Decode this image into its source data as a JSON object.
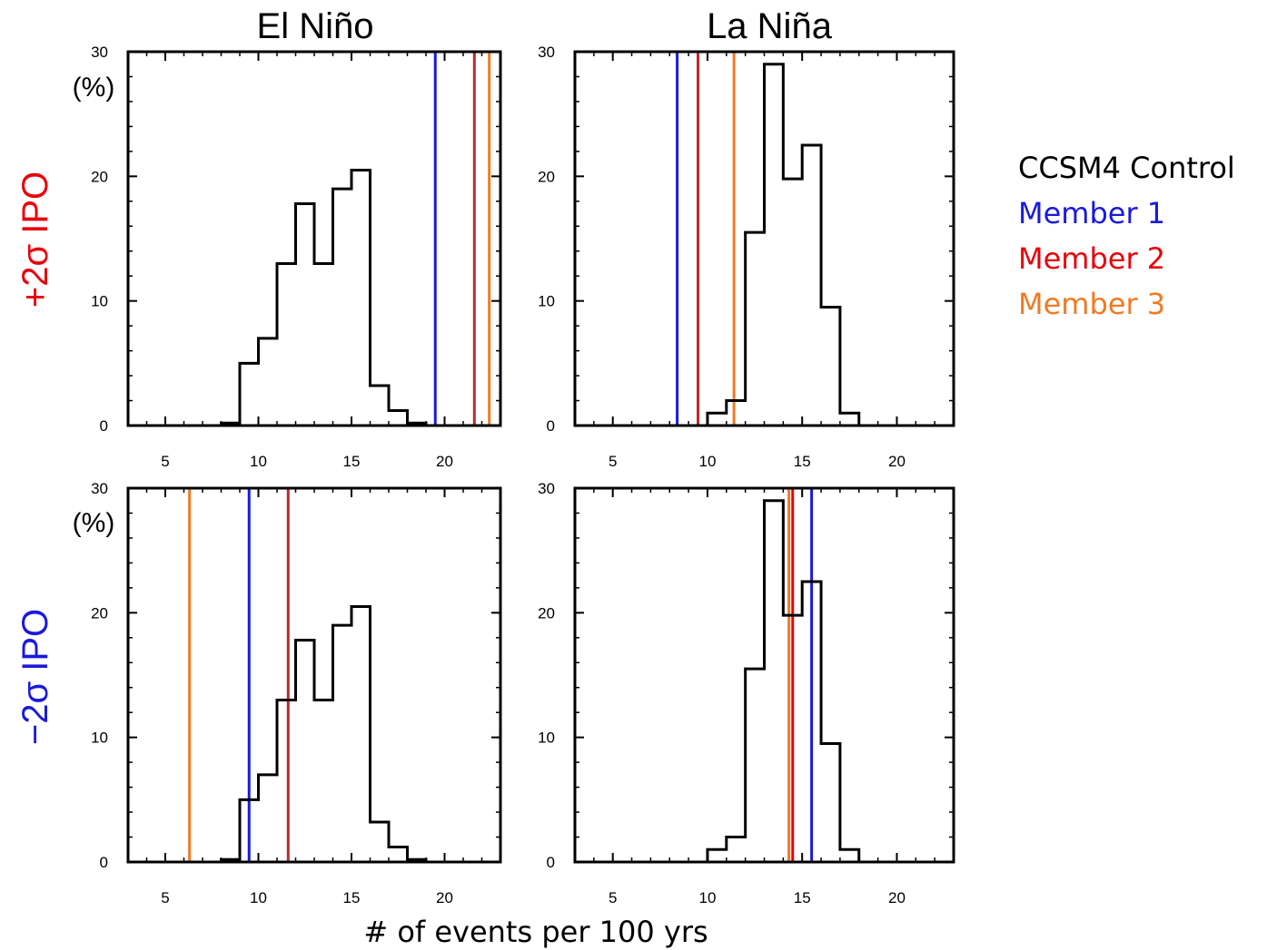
{
  "figure": {
    "col_titles": [
      "El Niño",
      "La Niña"
    ],
    "row_labels": [
      {
        "text": "+2σ IPO",
        "color": "#e8000b"
      },
      {
        "text": "−2σ IPO",
        "color": "#1a1adc"
      }
    ],
    "x_label": "# of events per 100 yrs",
    "y_unit": "(%)",
    "legend": [
      {
        "text": "CCSM4 Control",
        "color": "#000000"
      },
      {
        "text": "Member 1",
        "color": "#1a1adc"
      },
      {
        "text": "Member 2",
        "color": "#e8000b"
      },
      {
        "text": "Member 3",
        "color": "#f07a24"
      }
    ]
  },
  "chart_data": [
    {
      "type": "bar",
      "panel": "El Niño, +2σ IPO",
      "title": "El Niño",
      "row_label": "+2σ IPO",
      "ylabel": "(%)",
      "xlim": [
        3,
        23
      ],
      "ylim": [
        0,
        30
      ],
      "xticks": [
        5,
        10,
        15,
        20
      ],
      "yticks": [
        0,
        10,
        20,
        30
      ],
      "bin_edges": [
        3,
        4,
        5,
        6,
        7,
        8,
        9,
        10,
        11,
        12,
        13,
        14,
        15,
        16,
        17,
        18,
        19,
        20,
        21,
        22,
        23
      ],
      "values": [
        0,
        0,
        0,
        0,
        0,
        0.2,
        5,
        7,
        13,
        17.8,
        13,
        19,
        20.5,
        3.2,
        1.2,
        0.2,
        0,
        0,
        0,
        0
      ],
      "series_name": "CCSM4 Control",
      "member_lines": [
        {
          "name": "Member 1",
          "x": 19.5,
          "color": "#1a1adc"
        },
        {
          "name": "Member 2",
          "x": 21.6,
          "color": "#c0282b"
        },
        {
          "name": "Member 3",
          "x": 22.4,
          "color": "#f07a24"
        }
      ]
    },
    {
      "type": "bar",
      "panel": "La Niña, +2σ IPO",
      "title": "La Niña",
      "row_label": "+2σ IPO",
      "xlim": [
        3,
        23
      ],
      "ylim": [
        0,
        30
      ],
      "xticks": [
        5,
        10,
        15,
        20
      ],
      "yticks": [
        0,
        10,
        20,
        30
      ],
      "bin_edges": [
        3,
        4,
        5,
        6,
        7,
        8,
        9,
        10,
        11,
        12,
        13,
        14,
        15,
        16,
        17,
        18,
        19,
        20,
        21,
        22,
        23
      ],
      "values": [
        0,
        0,
        0,
        0,
        0,
        0,
        0,
        1,
        2,
        15.5,
        29,
        19.8,
        22.5,
        9.5,
        1,
        0,
        0,
        0,
        0,
        0
      ],
      "series_name": "CCSM4 Control",
      "member_lines": [
        {
          "name": "Member 1",
          "x": 8.4,
          "color": "#1a1adc"
        },
        {
          "name": "Member 2",
          "x": 9.5,
          "color": "#c0282b"
        },
        {
          "name": "Member 3",
          "x": 11.4,
          "color": "#f07a24"
        }
      ]
    },
    {
      "type": "bar",
      "panel": "El Niño, −2σ IPO",
      "title": "El Niño",
      "row_label": "−2σ IPO",
      "ylabel": "(%)",
      "xlim": [
        3,
        23
      ],
      "ylim": [
        0,
        30
      ],
      "xticks": [
        5,
        10,
        15,
        20
      ],
      "yticks": [
        0,
        10,
        20,
        30
      ],
      "bin_edges": [
        3,
        4,
        5,
        6,
        7,
        8,
        9,
        10,
        11,
        12,
        13,
        14,
        15,
        16,
        17,
        18,
        19,
        20,
        21,
        22,
        23
      ],
      "values": [
        0,
        0,
        0,
        0,
        0,
        0.2,
        5,
        7,
        13,
        17.8,
        13,
        19,
        20.5,
        3.2,
        1.2,
        0.2,
        0,
        0,
        0,
        0
      ],
      "series_name": "CCSM4 Control",
      "member_lines": [
        {
          "name": "Member 1",
          "x": 9.5,
          "color": "#1a1adc"
        },
        {
          "name": "Member 2",
          "x": 11.6,
          "color": "#c0282b"
        },
        {
          "name": "Member 3",
          "x": 6.3,
          "color": "#f07a24"
        }
      ]
    },
    {
      "type": "bar",
      "panel": "La Niña, −2σ IPO",
      "title": "La Niña",
      "row_label": "−2σ IPO",
      "xlim": [
        3,
        23
      ],
      "ylim": [
        0,
        30
      ],
      "xticks": [
        5,
        10,
        15,
        20
      ],
      "yticks": [
        0,
        10,
        20,
        30
      ],
      "bin_edges": [
        3,
        4,
        5,
        6,
        7,
        8,
        9,
        10,
        11,
        12,
        13,
        14,
        15,
        16,
        17,
        18,
        19,
        20,
        21,
        22,
        23
      ],
      "values": [
        0,
        0,
        0,
        0,
        0,
        0,
        0,
        1,
        2,
        15.5,
        29,
        19.8,
        22.5,
        9.5,
        1,
        0,
        0,
        0,
        0,
        0
      ],
      "series_name": "CCSM4 Control",
      "member_lines": [
        {
          "name": "Member 1",
          "x": 15.5,
          "color": "#1a1adc"
        },
        {
          "name": "Member 2",
          "x": 14.5,
          "color": "#e8000b"
        },
        {
          "name": "Member 3",
          "x": 14.3,
          "color": "#f07a24"
        }
      ]
    }
  ]
}
